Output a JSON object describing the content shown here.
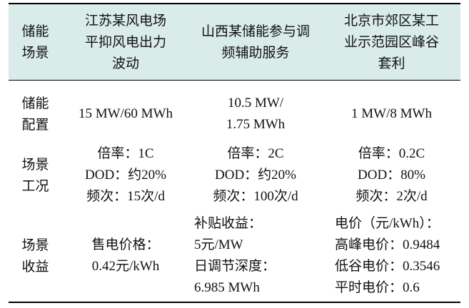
{
  "table": {
    "header": {
      "corner": [
        "储能",
        "场景"
      ],
      "col1": [
        "江苏某风电场",
        "平抑风电出力",
        "波动"
      ],
      "col2": [
        "山西某储能参与调",
        "频辅助服务"
      ],
      "col3": [
        "北京市郊区某工",
        "业示范园区峰谷",
        "套利"
      ]
    },
    "rows": [
      {
        "label": [
          "储能",
          "配置"
        ],
        "col1": [
          "15 MW/60 MWh"
        ],
        "col2": [
          "10.5 MW/",
          "1.75 MWh"
        ],
        "col3": [
          "1 MW/8 MWh"
        ]
      },
      {
        "label": [
          "场景",
          "工况"
        ],
        "col1": [
          "倍率：1C",
          "DOD：约20%",
          "频次：15次/d"
        ],
        "col2": [
          "倍率：2C",
          "DOD：约20%",
          "频次：100次/d"
        ],
        "col3": [
          "倍率：0.2C",
          "DOD：80%",
          "频次：2次/d"
        ]
      },
      {
        "label": [
          "场景",
          "收益"
        ],
        "col1": [
          "售电价格：",
          "0.42元/kWh"
        ],
        "col2": [
          "补贴收益：",
          "5元/MW",
          "日调节深度：",
          "6.985 MWh"
        ],
        "col3": [
          "电价（元/kWh）：",
          "高峰电价：0.9484",
          "低谷电价：0.3546",
          "平时电价：0.6"
        ]
      }
    ]
  }
}
